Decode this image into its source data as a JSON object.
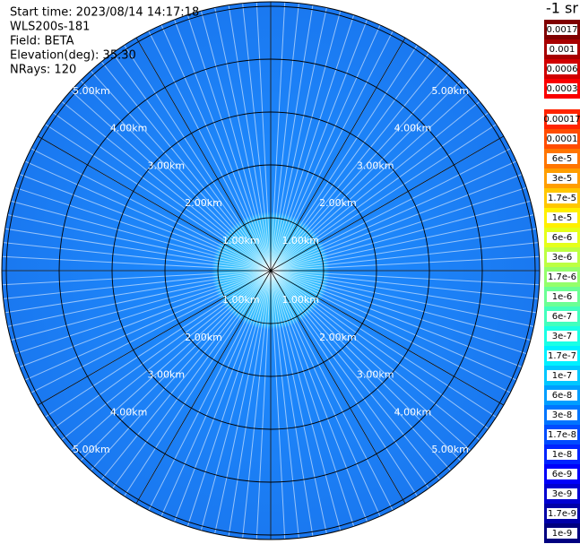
{
  "header": {
    "lines": [
      "Start time: 2023/08/14 14:17:18",
      "WLS200s-181",
      "Field: BETA",
      "Elevation(deg): 35.30",
      "NRays: 120"
    ]
  },
  "range_labels": [
    "1.00km",
    "2.00km",
    "3.00km",
    "4.00km",
    "5.00km"
  ],
  "colorbar": {
    "title": "-1 sr",
    "labels": [
      "0.0017",
      "0.001",
      "0.0006",
      "0.0003",
      "0.00017",
      "0.0001",
      "6e-5",
      "3e-5",
      "1.7e-5",
      "1e-5",
      "6e-6",
      "3e-6",
      "1.7e-6",
      "1e-6",
      "6e-7",
      "3e-7",
      "1.7e-7",
      "1e-7",
      "6e-8",
      "3e-8",
      "1.7e-8",
      "1e-8",
      "6e-9",
      "3e-9",
      "1.7e-9",
      "1e-9"
    ]
  }
}
